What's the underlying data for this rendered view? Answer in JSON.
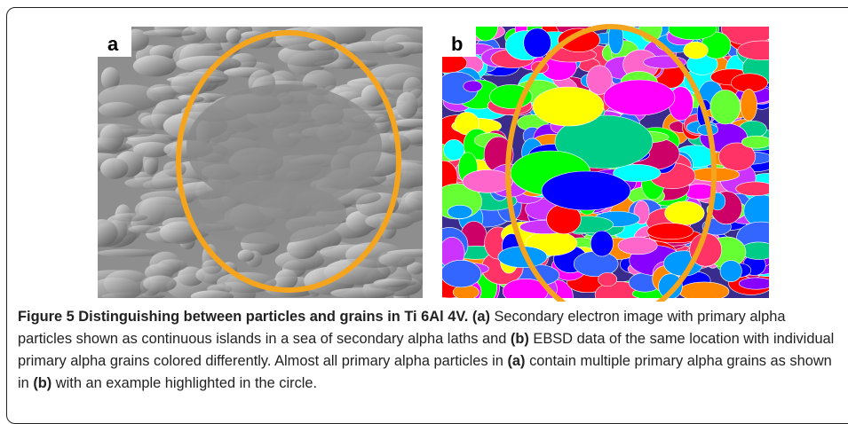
{
  "figure": {
    "panels": [
      {
        "label": "a"
      },
      {
        "label": "b"
      }
    ],
    "caption": {
      "title": "Figure 5 Distinguishing between particles and grains in Ti 6Al 4V.",
      "body": [
        {
          "ref": "(a)"
        },
        {
          "text": " Secondary electron image with primary alpha particles shown as continuous islands in a sea of secondary alpha laths and "
        },
        {
          "ref": "(b)"
        },
        {
          "text": " EBSD data of the same location with individual primary alpha grains colored differently. Almost all primary alpha particles in "
        },
        {
          "ref": "(a)"
        },
        {
          "text": " contain multiple primary alpha grains as shown in "
        },
        {
          "ref": "(b)"
        },
        {
          "text": " with an example highlighted in the circle."
        }
      ]
    }
  }
}
